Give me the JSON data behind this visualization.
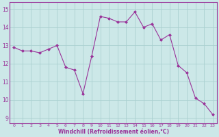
{
  "x": [
    0,
    1,
    2,
    3,
    4,
    5,
    6,
    7,
    8,
    9,
    10,
    11,
    12,
    13,
    14,
    15,
    16,
    17,
    18,
    19,
    20,
    21,
    22,
    23
  ],
  "y": [
    12.9,
    12.7,
    12.7,
    12.6,
    12.8,
    13.0,
    11.8,
    11.65,
    10.35,
    12.4,
    14.6,
    14.5,
    14.3,
    14.3,
    14.85,
    14.0,
    14.2,
    13.3,
    13.6,
    11.9,
    11.5,
    10.1,
    9.8,
    9.2
  ],
  "line_color": "#993399",
  "marker_color": "#993399",
  "bg_color": "#cce8e8",
  "grid_color": "#aad0d0",
  "xlabel": "Windchill (Refroidissement éolien,°C)",
  "xlabel_color": "#993399",
  "tick_color": "#993399",
  "yticks": [
    9,
    10,
    11,
    12,
    13,
    14,
    15
  ],
  "xticks": [
    0,
    1,
    2,
    3,
    4,
    5,
    6,
    7,
    8,
    9,
    10,
    11,
    12,
    13,
    14,
    15,
    16,
    17,
    18,
    19,
    20,
    21,
    22,
    23
  ],
  "ylim": [
    8.7,
    15.4
  ],
  "xlim": [
    -0.5,
    23.5
  ],
  "figsize": [
    3.2,
    2.0
  ],
  "dpi": 100
}
